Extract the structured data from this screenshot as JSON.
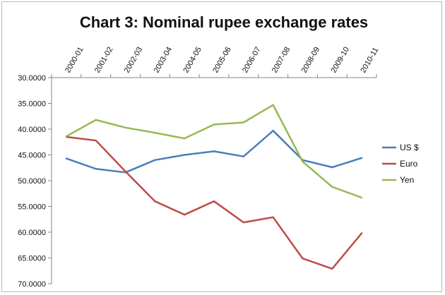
{
  "chart_data": {
    "type": "line",
    "title": "Chart 3: Nominal rupee exchange rates",
    "xlabel": "",
    "ylabel": "",
    "categories": [
      "2000-01",
      "2001-02",
      "2002-03",
      "2003-04",
      "2004-05",
      "2005-06",
      "2006-07",
      "2007-08",
      "2008-09",
      "2009-10",
      "2010-11"
    ],
    "y_ticks": [
      "30.0000",
      "35.0000",
      "40.0000",
      "45.0000",
      "50.0000",
      "55.0000",
      "60.0000",
      "65.0000",
      "70.0000"
    ],
    "y_tick_values": [
      30,
      35,
      40,
      45,
      50,
      55,
      60,
      65,
      70
    ],
    "ylim": [
      30,
      70
    ],
    "y_axis_reversed": true,
    "x_axis_position": "top",
    "grid": false,
    "legend_position": "right",
    "series": [
      {
        "name": "US $",
        "color": "#4a7ebb",
        "values": [
          45.7,
          47.7,
          48.4,
          46.0,
          45.0,
          44.3,
          45.3,
          40.3,
          46.0,
          47.4,
          45.6
        ]
      },
      {
        "name": "Euro",
        "color": "#be4b48",
        "values": [
          41.5,
          42.2,
          48.2,
          54.0,
          56.6,
          54.0,
          58.1,
          57.1,
          65.1,
          67.1,
          60.2
        ]
      },
      {
        "name": "Yen",
        "color": "#98b954",
        "values": [
          41.4,
          38.2,
          39.7,
          40.7,
          41.8,
          39.1,
          38.7,
          35.3,
          46.3,
          51.2,
          53.3
        ]
      }
    ]
  }
}
